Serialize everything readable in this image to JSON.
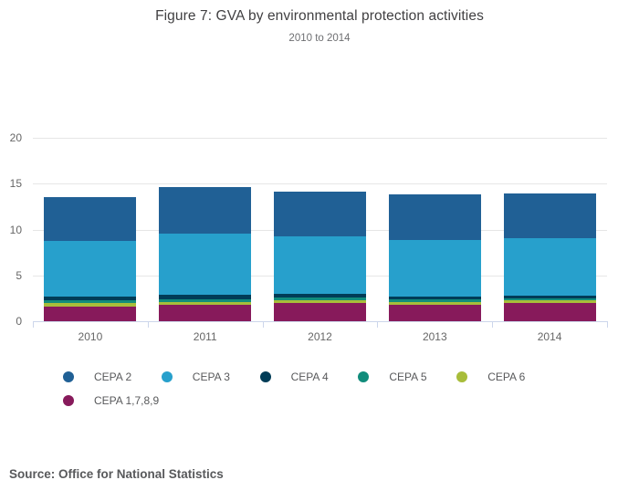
{
  "title": "Figure 7: GVA by environmental protection activities",
  "subtitle": "2010 to 2014",
  "source": "Source: Office for National Statistics",
  "chart_data": {
    "type": "bar",
    "stacked": true,
    "title": "Figure 7: GVA by environmental protection activities",
    "subtitle": "2010 to 2014",
    "categories": [
      "2010",
      "2011",
      "2012",
      "2013",
      "2014"
    ],
    "series": [
      {
        "name": "CEPA 2",
        "color": "#206095",
        "values": [
          4.75,
          5.05,
          4.9,
          4.95,
          4.8
        ]
      },
      {
        "name": "CEPA 3",
        "color": "#27a0cc",
        "values": [
          6.1,
          6.7,
          6.3,
          6.15,
          6.3
        ]
      },
      {
        "name": "CEPA 4",
        "color": "#003c57",
        "values": [
          0.45,
          0.45,
          0.35,
          0.35,
          0.3
        ]
      },
      {
        "name": "CEPA 5",
        "color": "#118c7b",
        "values": [
          0.3,
          0.3,
          0.3,
          0.25,
          0.25
        ]
      },
      {
        "name": "CEPA 6",
        "color": "#a8bd3a",
        "values": [
          0.35,
          0.35,
          0.35,
          0.35,
          0.3
        ]
      },
      {
        "name": "CEPA 1,7,8,9",
        "color": "#871a5b",
        "values": [
          1.6,
          1.75,
          1.95,
          1.75,
          1.95
        ]
      }
    ],
    "totals": [
      13.55,
      14.6,
      14.15,
      13.8,
      13.9
    ],
    "stack_order_bottom_to_top": [
      "CEPA 1,7,8,9",
      "CEPA 6",
      "CEPA 5",
      "CEPA 4",
      "CEPA 3",
      "CEPA 2"
    ],
    "xlabel": "",
    "ylabel": "",
    "ylim": [
      0,
      20
    ],
    "yticks": [
      0,
      5,
      10,
      15,
      20
    ],
    "grid": true,
    "legend_position": "bottom-left",
    "colors": {
      "axis_line": "#ccd6eb",
      "gridline": "#e6e6e6",
      "tick_label": "#666666",
      "title_text": "#414042",
      "subtitle_text": "#6d6e71",
      "legend_text": "#58595b"
    }
  }
}
